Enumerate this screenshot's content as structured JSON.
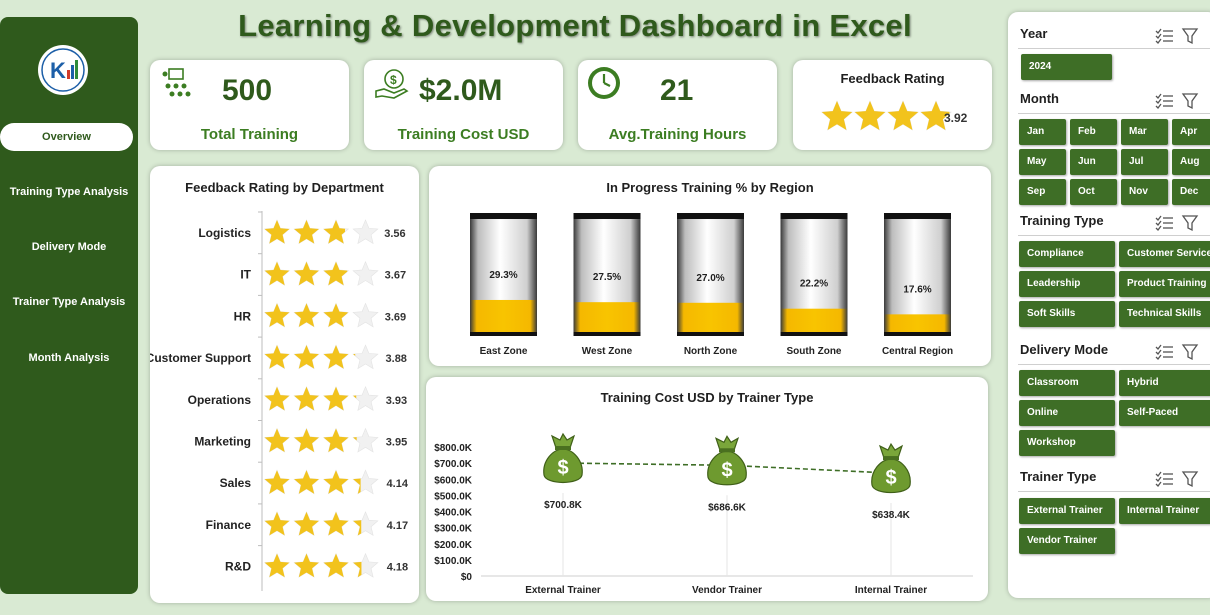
{
  "title": "Learning & Development Dashboard in Excel",
  "sidebar": {
    "items": [
      {
        "label": "Overview",
        "active": true
      },
      {
        "label": "Training Type Analysis"
      },
      {
        "label": "Delivery Mode"
      },
      {
        "label": "Trainer Type Analysis"
      },
      {
        "label": "Month Analysis"
      }
    ]
  },
  "kpis": {
    "total_training": {
      "value": "500",
      "label": "Total Training"
    },
    "training_cost": {
      "value": "$2.0M",
      "label": "Training Cost USD"
    },
    "avg_hours": {
      "value": "21",
      "label": "Avg.Training Hours"
    },
    "feedback": {
      "label": "Feedback Rating",
      "value": "3.92",
      "stars": 3.92
    }
  },
  "colors": {
    "dark_green": "#2f5a1c",
    "accent_green": "#3c7d22",
    "star": "#f2c31c",
    "bar_fill": "#f5b800"
  },
  "charts": {
    "feedback_by_department": {
      "title": "Feedback Rating by Department",
      "chart_data": {
        "type": "bar",
        "categories": [
          "Logistics",
          "IT",
          "HR",
          "Customer Support",
          "Operations",
          "Marketing",
          "Sales",
          "Finance",
          "R&D"
        ],
        "values": [
          3.56,
          3.67,
          3.69,
          3.88,
          3.93,
          3.95,
          4.14,
          4.17,
          4.18
        ],
        "labels": [
          "3.56",
          "3.67",
          "3.69",
          "3.88",
          "3.93",
          "3.95",
          "4.14",
          "4.17",
          "4.18"
        ],
        "max": 5
      }
    },
    "in_progress_by_region": {
      "title": "In Progress Training % by Region",
      "chart_data": {
        "type": "bar",
        "categories": [
          "East Zone",
          "West Zone",
          "North Zone",
          "South Zone",
          "Central Region"
        ],
        "values": [
          29.3,
          27.5,
          27.0,
          22.2,
          17.6
        ],
        "labels": [
          "29.3%",
          "27.5%",
          "27.0%",
          "22.2%",
          "17.6%"
        ],
        "ylim": [
          0,
          100
        ]
      }
    },
    "cost_by_trainer": {
      "title": "Training Cost USD by Trainer Type",
      "chart_data": {
        "type": "line",
        "categories": [
          "External Trainer",
          "Vendor Trainer",
          "Internal Trainer"
        ],
        "values": [
          700.8,
          686.6,
          638.4
        ],
        "labels": [
          "$700.8K",
          "$686.6K",
          "$638.4K"
        ],
        "yticks": [
          "$0",
          "$100.0K",
          "$200.0K",
          "$300.0K",
          "$400.0K",
          "$500.0K",
          "$600.0K",
          "$700.0K",
          "$800.0K"
        ],
        "ylim": [
          0,
          800
        ]
      }
    }
  },
  "slicers": {
    "year": {
      "title": "Year",
      "items": [
        "2024"
      ]
    },
    "month": {
      "title": "Month",
      "items": [
        "Jan",
        "Feb",
        "Mar",
        "Apr",
        "May",
        "Jun",
        "Jul",
        "Aug",
        "Sep",
        "Oct",
        "Nov",
        "Dec"
      ]
    },
    "training_type": {
      "title": "Training Type",
      "items": [
        "Compliance",
        "Customer Service",
        "Leadership",
        "Product Training",
        "Soft Skills",
        "Technical Skills"
      ]
    },
    "delivery_mode": {
      "title": "Delivery Mode",
      "items": [
        "Classroom",
        "Hybrid",
        "Online",
        "Self-Paced",
        "Workshop"
      ]
    },
    "trainer_type": {
      "title": "Trainer Type",
      "items": [
        "External Trainer",
        "Internal Trainer",
        "Vendor Trainer"
      ]
    }
  }
}
